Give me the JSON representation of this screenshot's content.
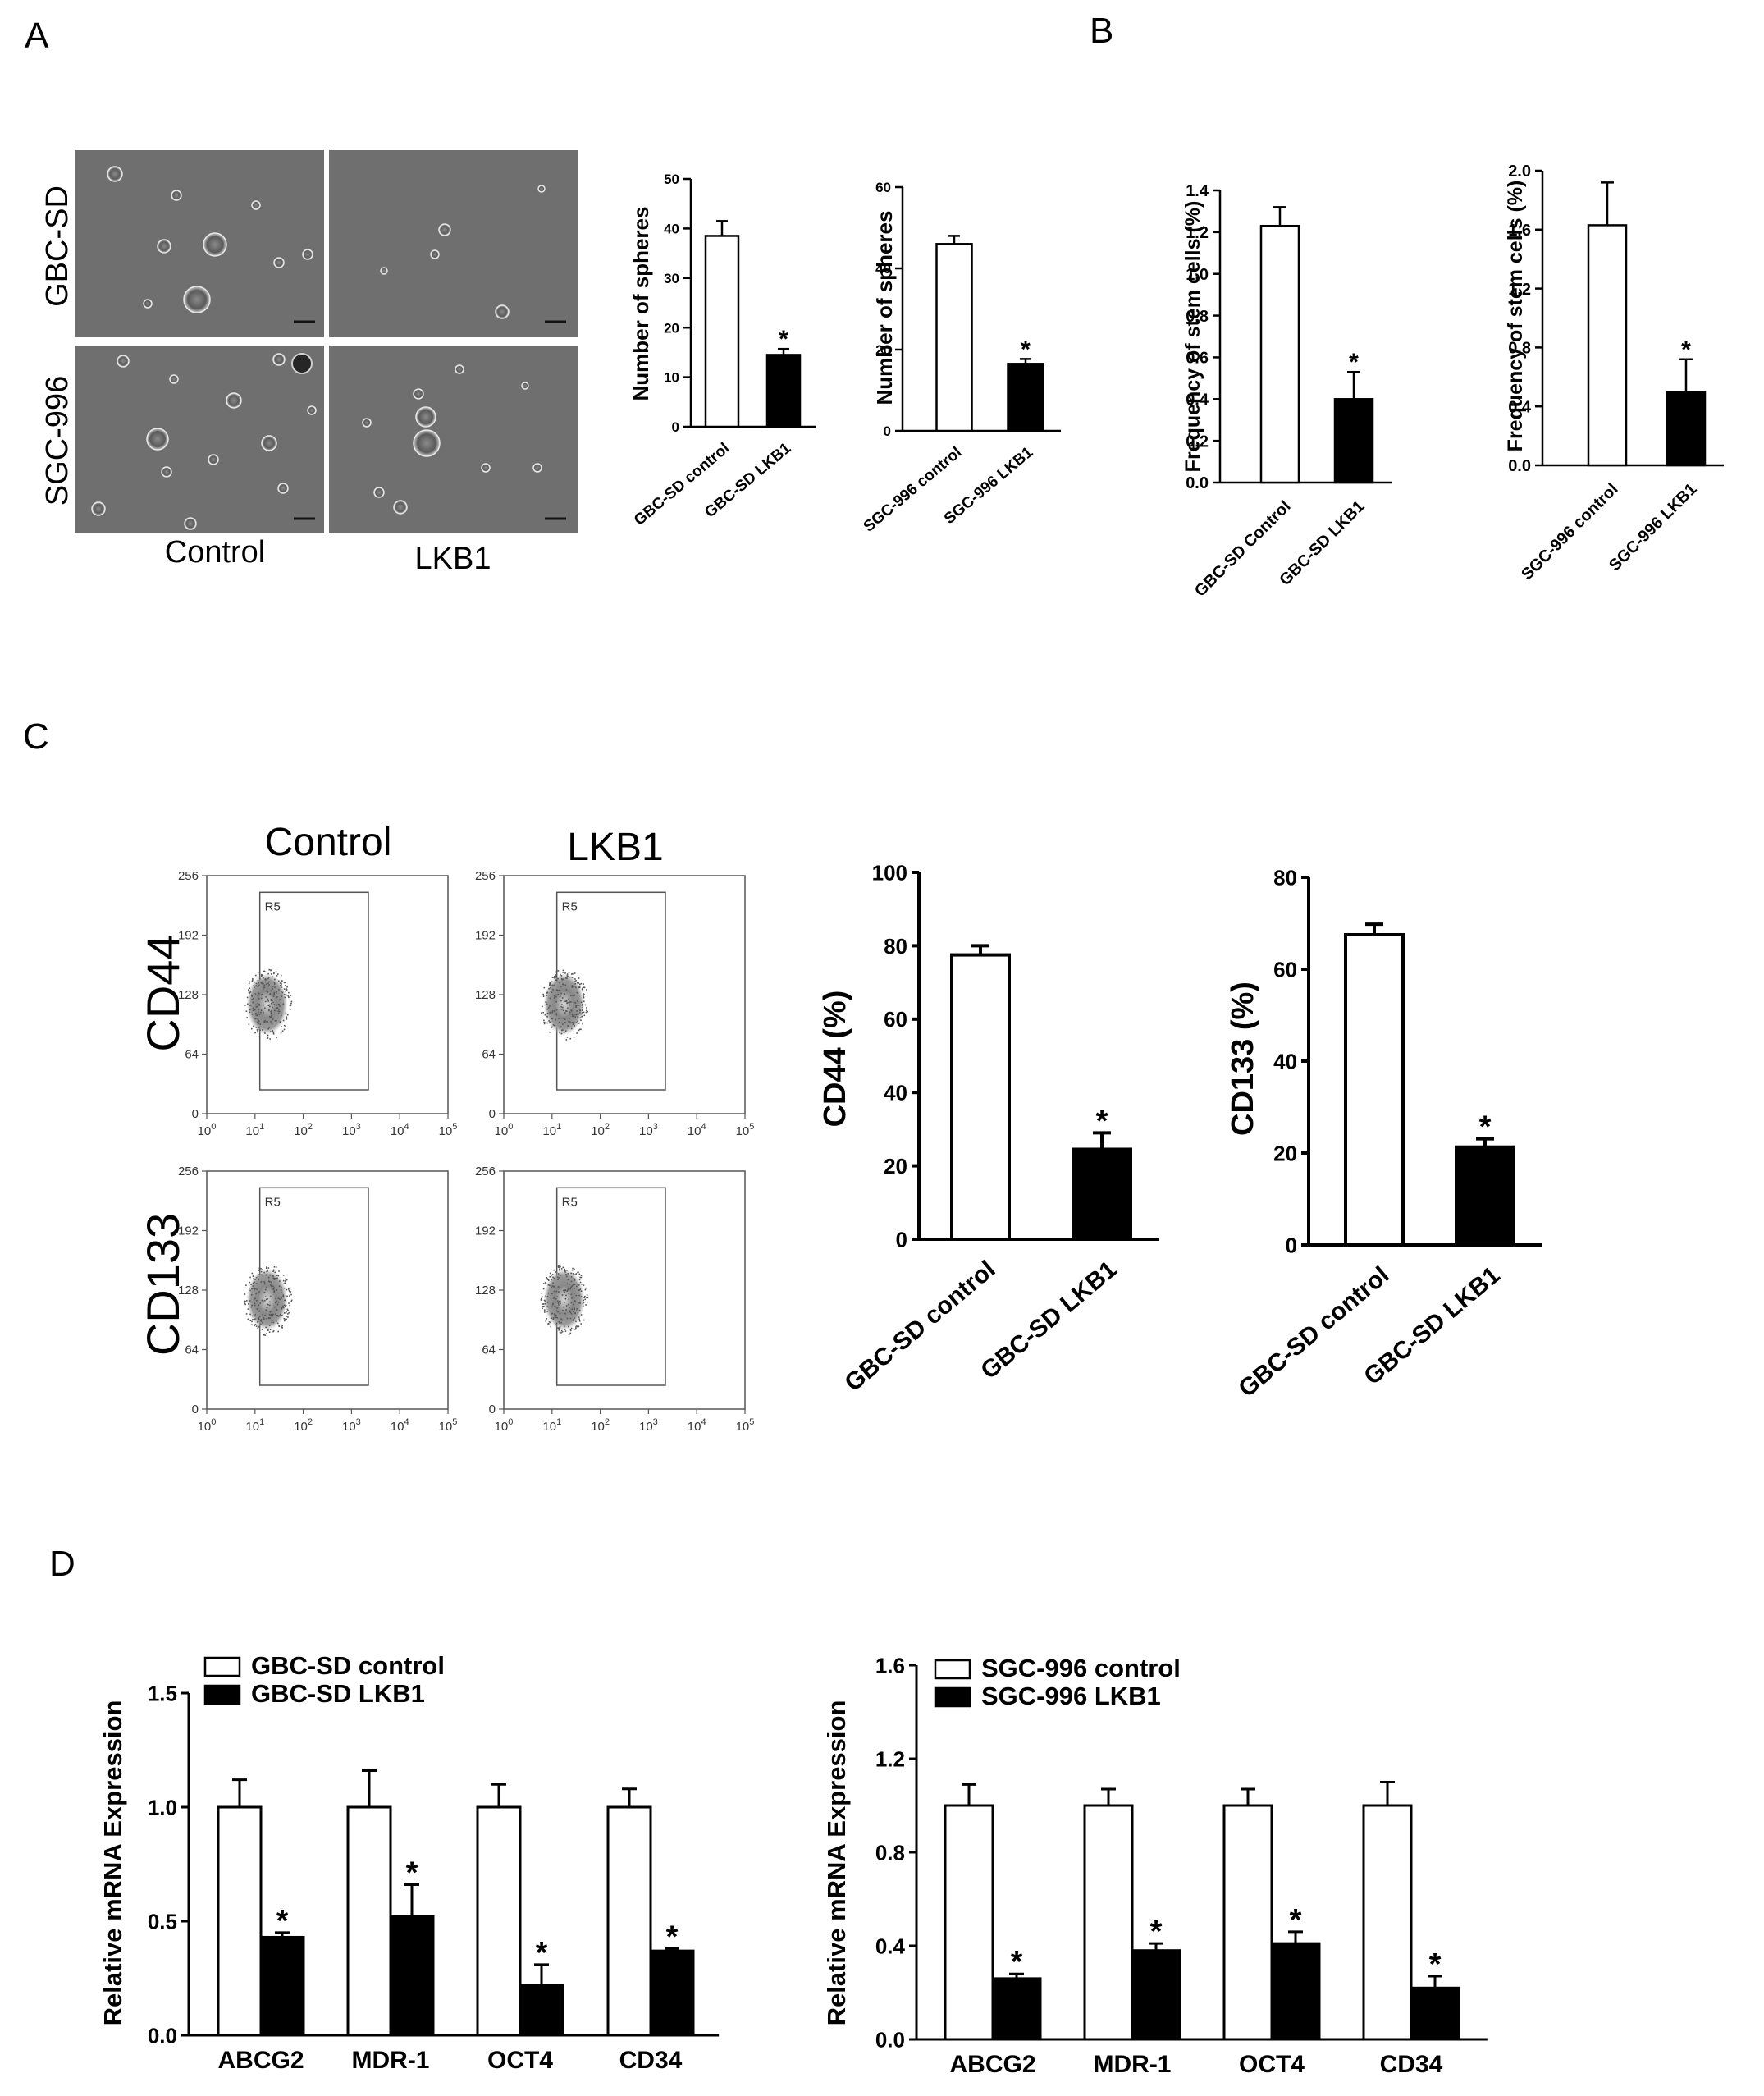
{
  "panels": {
    "A": {
      "letter": "A",
      "row_labels": [
        "GBC-SD",
        "SGC-996"
      ],
      "col_labels": [
        "Control",
        "LKB1"
      ]
    },
    "B": {
      "letter": "B"
    },
    "C": {
      "letter": "C",
      "col_labels": [
        "Control",
        "LKB1"
      ],
      "row_labels": [
        "CD44",
        "CD133"
      ],
      "gate_label": "R5",
      "flow_y_ticks": [
        "0",
        "64",
        "128",
        "192",
        "256"
      ],
      "flow_x_ticks": [
        {
          "b": "10",
          "e": "0"
        },
        {
          "b": "10",
          "e": "1"
        },
        {
          "b": "10",
          "e": "2"
        },
        {
          "b": "10",
          "e": "3"
        },
        {
          "b": "10",
          "e": "4"
        },
        {
          "b": "10",
          "e": "5"
        }
      ]
    },
    "D": {
      "letter": "D"
    }
  },
  "chart_data": [
    {
      "id": "A1",
      "type": "bar",
      "categories": [
        "GBC-SD control",
        "GBC-SD LKB1"
      ],
      "values": [
        38.5,
        14.5
      ],
      "errors": [
        3,
        1.2
      ],
      "fills": [
        "#ffffff",
        "#000000"
      ],
      "sig": [
        "",
        "*"
      ],
      "ylabel": "Number of spheres",
      "ylim": [
        0,
        50
      ],
      "yticks": [
        0,
        10,
        20,
        30,
        40,
        50
      ],
      "ytick_labels": [
        "0",
        "10",
        "20",
        "30",
        "40",
        "50"
      ]
    },
    {
      "id": "A2",
      "type": "bar",
      "categories": [
        "SGC-996 control",
        "SGC-996 LKB1"
      ],
      "values": [
        46,
        16.5
      ],
      "errors": [
        2,
        1.2
      ],
      "fills": [
        "#ffffff",
        "#000000"
      ],
      "sig": [
        "",
        "*"
      ],
      "ylabel": "Number of spheres",
      "ylim": [
        0,
        60
      ],
      "yticks": [
        0,
        20,
        40,
        60
      ],
      "ytick_labels": [
        "0",
        "20",
        "40",
        "60"
      ]
    },
    {
      "id": "B1",
      "type": "bar",
      "categories": [
        "GBC-SD Control",
        "GBC-SD LKB1"
      ],
      "values": [
        1.23,
        0.4
      ],
      "errors": [
        0.09,
        0.13
      ],
      "fills": [
        "#ffffff",
        "#000000"
      ],
      "sig": [
        "",
        "*"
      ],
      "ylabel": "Frequency of stem cells (%)",
      "ylim": [
        0,
        1.4
      ],
      "yticks": [
        0,
        0.2,
        0.4,
        0.6,
        0.8,
        1.0,
        1.2,
        1.4
      ],
      "ytick_labels": [
        "0.0",
        "0.2",
        "0.4",
        "0.6",
        "0.8",
        "1.0",
        "1.2",
        "1.4"
      ]
    },
    {
      "id": "B2",
      "type": "bar",
      "categories": [
        "SGC-996 control",
        "SGC-996 LKB1"
      ],
      "values": [
        1.63,
        0.5
      ],
      "errors": [
        0.29,
        0.22
      ],
      "fills": [
        "#ffffff",
        "#000000"
      ],
      "sig": [
        "",
        "*"
      ],
      "ylabel": "Frequency of stem cells (%)",
      "ylim": [
        0,
        2.0
      ],
      "yticks": [
        0,
        0.4,
        0.8,
        1.2,
        1.6,
        2.0
      ],
      "ytick_labels": [
        "0.0",
        "0.4",
        "0.8",
        "1.2",
        "1.6",
        "2.0"
      ]
    },
    {
      "id": "C1",
      "type": "bar",
      "categories": [
        "GBC-SD control",
        "GBC-SD LKB1"
      ],
      "values": [
        77.5,
        24.5
      ],
      "errors": [
        2.5,
        4.5
      ],
      "fills": [
        "#ffffff",
        "#000000"
      ],
      "sig": [
        "",
        "*"
      ],
      "ylabel": "CD44 (%)",
      "ylim": [
        0,
        100
      ],
      "yticks": [
        0,
        20,
        40,
        60,
        80,
        100
      ],
      "ytick_labels": [
        "0",
        "20",
        "40",
        "60",
        "80",
        "100"
      ]
    },
    {
      "id": "C2",
      "type": "bar",
      "categories": [
        "GBC-SD control",
        "GBC-SD LKB1"
      ],
      "values": [
        67.5,
        21.3
      ],
      "errors": [
        2.3,
        1.8
      ],
      "fills": [
        "#ffffff",
        "#000000"
      ],
      "sig": [
        "",
        "*"
      ],
      "ylabel": "CD133 (%)",
      "ylim": [
        0,
        80
      ],
      "yticks": [
        0,
        20,
        40,
        60,
        80
      ],
      "ytick_labels": [
        "0",
        "20",
        "40",
        "60",
        "80"
      ]
    },
    {
      "id": "D1",
      "type": "bar",
      "categories": [
        "ABCG2",
        "MDR-1",
        "OCT4",
        "CD34"
      ],
      "series": [
        {
          "name": "GBC-SD control",
          "values": [
            1.0,
            1.0,
            1.0,
            1.0
          ],
          "errors": [
            0.12,
            0.16,
            0.1,
            0.08
          ],
          "fill": "#ffffff"
        },
        {
          "name": "GBC-SD LKB1",
          "values": [
            0.43,
            0.52,
            0.22,
            0.37
          ],
          "errors": [
            0.02,
            0.14,
            0.09,
            0.01
          ],
          "fill": "#000000",
          "sig": [
            "*",
            "*",
            "*",
            "*"
          ]
        }
      ],
      "ylabel": "Relative mRNA Expression",
      "ylim": [
        0,
        1.5
      ],
      "yticks": [
        0,
        0.5,
        1.0,
        1.5
      ],
      "ytick_labels": [
        "0.0",
        "0.5",
        "1.0",
        "1.5"
      ],
      "legend": "top-left"
    },
    {
      "id": "D2",
      "type": "bar",
      "categories": [
        "ABCG2",
        "MDR-1",
        "OCT4",
        "CD34"
      ],
      "series": [
        {
          "name": "SGC-996  control",
          "values": [
            1.0,
            1.0,
            1.0,
            1.0
          ],
          "errors": [
            0.09,
            0.07,
            0.07,
            0.1
          ],
          "fill": "#ffffff"
        },
        {
          "name": "SGC-996 LKB1",
          "values": [
            0.26,
            0.38,
            0.41,
            0.22
          ],
          "errors": [
            0.02,
            0.03,
            0.05,
            0.05
          ],
          "fill": "#000000",
          "sig": [
            "*",
            "*",
            "*",
            "*"
          ]
        }
      ],
      "ylabel": "Relative mRNA Expression",
      "ylim": [
        0,
        1.6
      ],
      "yticks": [
        0,
        0.4,
        0.8,
        1.2,
        1.6
      ],
      "ytick_labels": [
        "0.0",
        "0.4",
        "0.8",
        "1.2",
        "1.6"
      ],
      "legend": "top-left"
    }
  ]
}
